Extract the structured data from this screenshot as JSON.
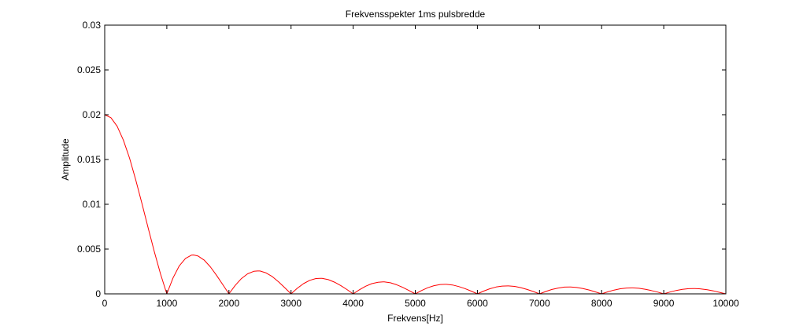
{
  "chart_data": {
    "type": "line",
    "title": "Frekvensspekter 1ms pulsbredde",
    "xlabel": "Frekvens[Hz]",
    "ylabel": "Amplitude",
    "xlim": [
      0,
      10000
    ],
    "ylim": [
      0,
      0.03
    ],
    "grid": false,
    "x_ticks": [
      0,
      1000,
      2000,
      3000,
      4000,
      5000,
      6000,
      7000,
      8000,
      9000,
      10000
    ],
    "x_tick_labels": [
      "0",
      "1000",
      "2000",
      "3000",
      "4000",
      "5000",
      "6000",
      "7000",
      "8000",
      "9000",
      "10000"
    ],
    "y_ticks": [
      0,
      0.005,
      0.01,
      0.015,
      0.02,
      0.025,
      0.03
    ],
    "y_tick_labels": [
      "0",
      "0.005",
      "0.01",
      "0.015",
      "0.02",
      "0.025",
      "0.03"
    ],
    "series": [
      {
        "color": "#ff0000",
        "x": [
          0,
          100,
          200,
          300,
          400,
          500,
          600,
          700,
          800,
          900,
          1000,
          1100,
          1200,
          1300,
          1400,
          1430,
          1500,
          1600,
          1700,
          1800,
          1900,
          2000,
          2100,
          2200,
          2300,
          2400,
          2460,
          2500,
          2600,
          2700,
          2800,
          2900,
          3000,
          3100,
          3200,
          3300,
          3400,
          3470,
          3500,
          3600,
          3700,
          3800,
          3900,
          4000,
          4100,
          4200,
          4300,
          4400,
          4480,
          4500,
          4600,
          4700,
          4800,
          4900,
          5000,
          5100,
          5200,
          5300,
          5400,
          5480,
          5500,
          5600,
          5700,
          5800,
          5900,
          6000,
          6100,
          6200,
          6300,
          6400,
          6490,
          6500,
          6600,
          6700,
          6800,
          6900,
          7000,
          7100,
          7200,
          7300,
          7400,
          7490,
          7500,
          7600,
          7700,
          7800,
          7900,
          8000,
          8100,
          8200,
          8300,
          8400,
          8490,
          8500,
          8600,
          8700,
          8800,
          8900,
          9000,
          9100,
          9200,
          9300,
          9400,
          9490,
          9500,
          9600,
          9700,
          9800,
          9900,
          10000
        ],
        "y": [
          0.02,
          0.01967,
          0.01871,
          0.01717,
          0.01514,
          0.01273,
          0.01009,
          0.00736,
          0.00468,
          0.00219,
          0.0,
          0.00178,
          0.00312,
          0.00396,
          0.00433,
          0.00434,
          0.00424,
          0.00378,
          0.00303,
          0.00208,
          0.00104,
          0.0,
          0.00094,
          0.0017,
          0.00224,
          0.00252,
          0.00255,
          0.00255,
          0.00233,
          0.00192,
          0.00134,
          0.00068,
          0.0,
          0.00062,
          0.00114,
          0.00151,
          0.00171,
          0.00174,
          0.00174,
          0.00159,
          0.00131,
          0.00093,
          0.00048,
          0.0,
          0.00046,
          0.00085,
          0.00114,
          0.0013,
          0.00134,
          0.00134,
          0.00124,
          0.00102,
          0.00072,
          0.00037,
          0.0,
          0.00037,
          0.00068,
          0.00091,
          0.00104,
          0.00106,
          0.00106,
          0.00099,
          0.00082,
          0.00059,
          0.00031,
          0.0,
          0.00031,
          0.00057,
          0.00076,
          0.00087,
          0.00089,
          0.00089,
          0.00083,
          0.00069,
          0.00049,
          0.00026,
          0.0,
          0.00026,
          0.00049,
          0.00065,
          0.00075,
          0.00076,
          0.00076,
          0.00071,
          0.00059,
          0.00043,
          0.00022,
          0.0,
          0.00023,
          0.00042,
          0.00057,
          0.00065,
          0.00067,
          0.00067,
          0.00062,
          0.00052,
          0.00037,
          0.0002,
          0.0,
          0.0002,
          0.00038,
          0.0005,
          0.00058,
          0.00059,
          0.00059,
          0.00055,
          0.00046,
          0.00033,
          0.00017,
          0.0
        ]
      }
    ]
  }
}
